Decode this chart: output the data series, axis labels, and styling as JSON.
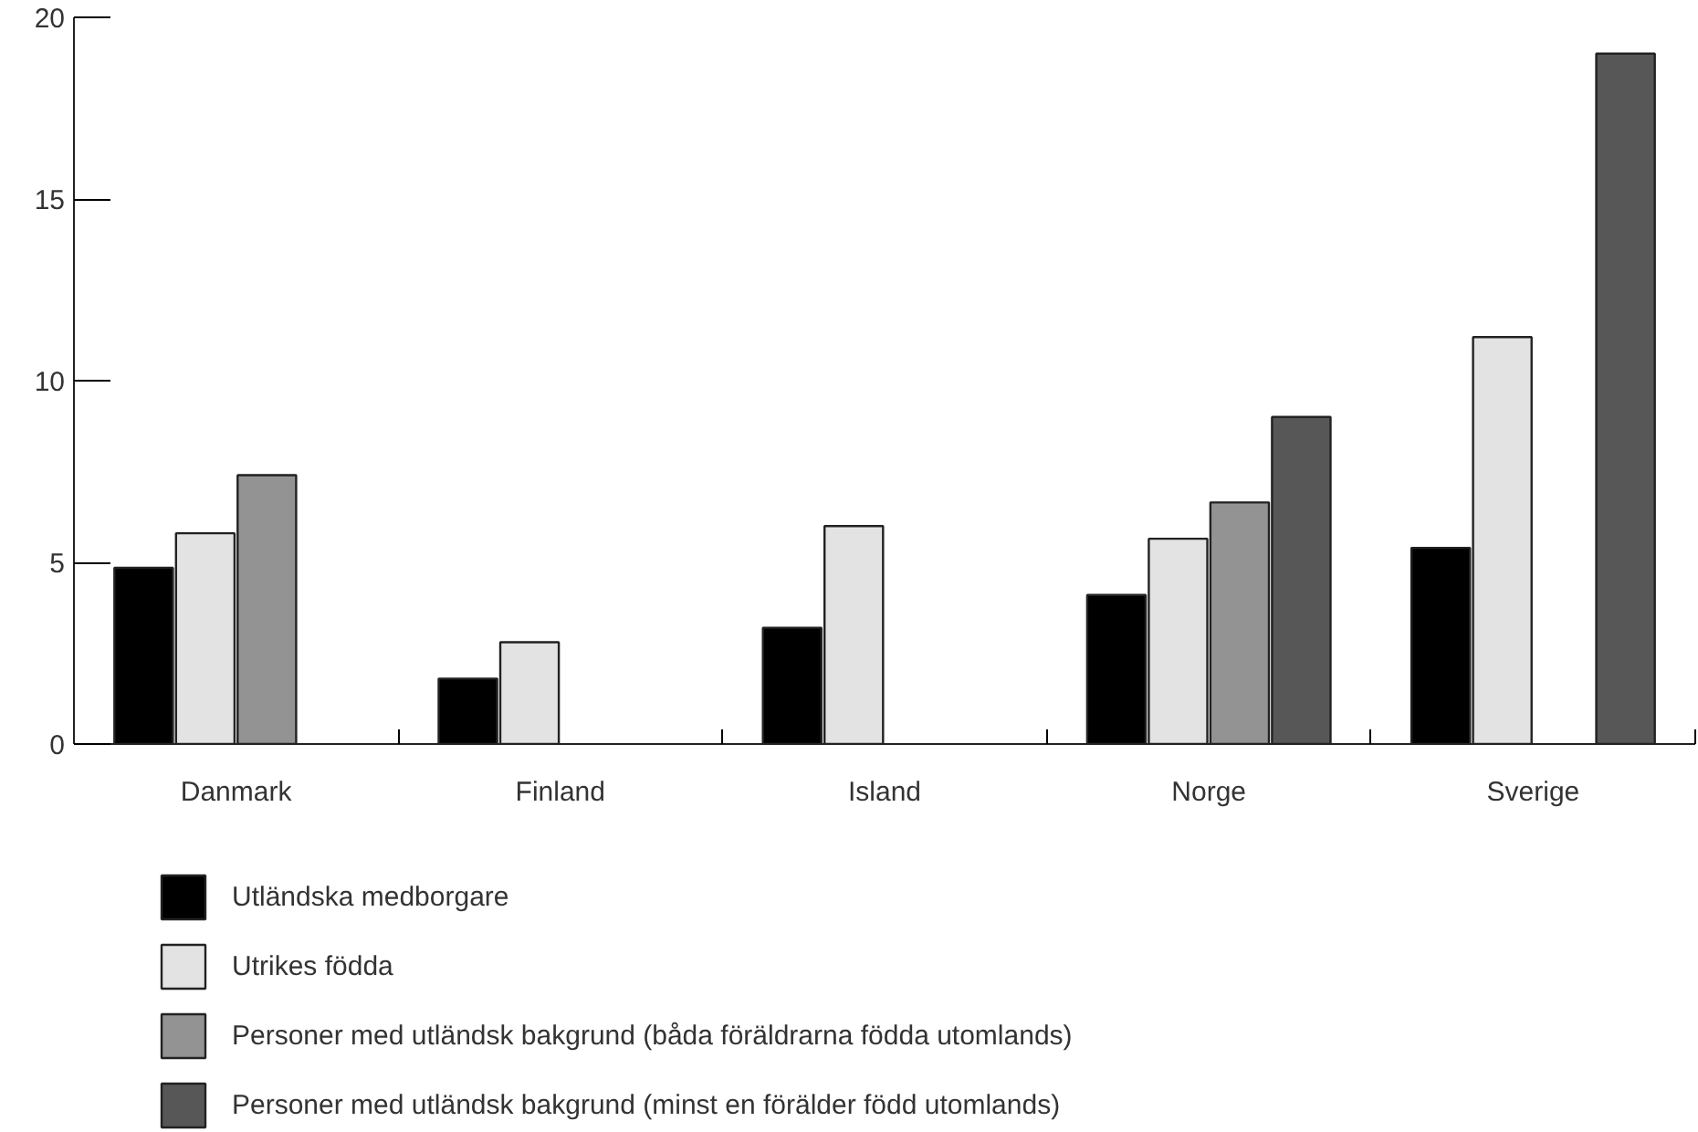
{
  "chart_data": {
    "type": "bar",
    "categories": [
      "Danmark",
      "Finland",
      "Island",
      "Norge",
      "Sverige"
    ],
    "series": [
      {
        "name": "Utländska medborgare",
        "color": "#000000",
        "values": [
          4.85,
          1.8,
          3.2,
          4.1,
          5.4
        ]
      },
      {
        "name": "Utrikes födda",
        "color": "#e3e3e3",
        "values": [
          5.8,
          2.8,
          6.0,
          5.65,
          11.2
        ]
      },
      {
        "name": "Personer med utländsk bakgrund (båda föräldrarna födda utomlands)",
        "color": "#939393",
        "values": [
          7.4,
          null,
          null,
          6.65,
          null
        ]
      },
      {
        "name": "Personer med utländsk bakgrund (minst en förälder född utomlands)",
        "color": "#575757",
        "values": [
          null,
          null,
          null,
          9.0,
          19.0
        ]
      }
    ],
    "ylim": [
      0,
      20
    ],
    "yticks": [
      0,
      5,
      10,
      15,
      20
    ],
    "grid": false,
    "legend": "bottom"
  }
}
